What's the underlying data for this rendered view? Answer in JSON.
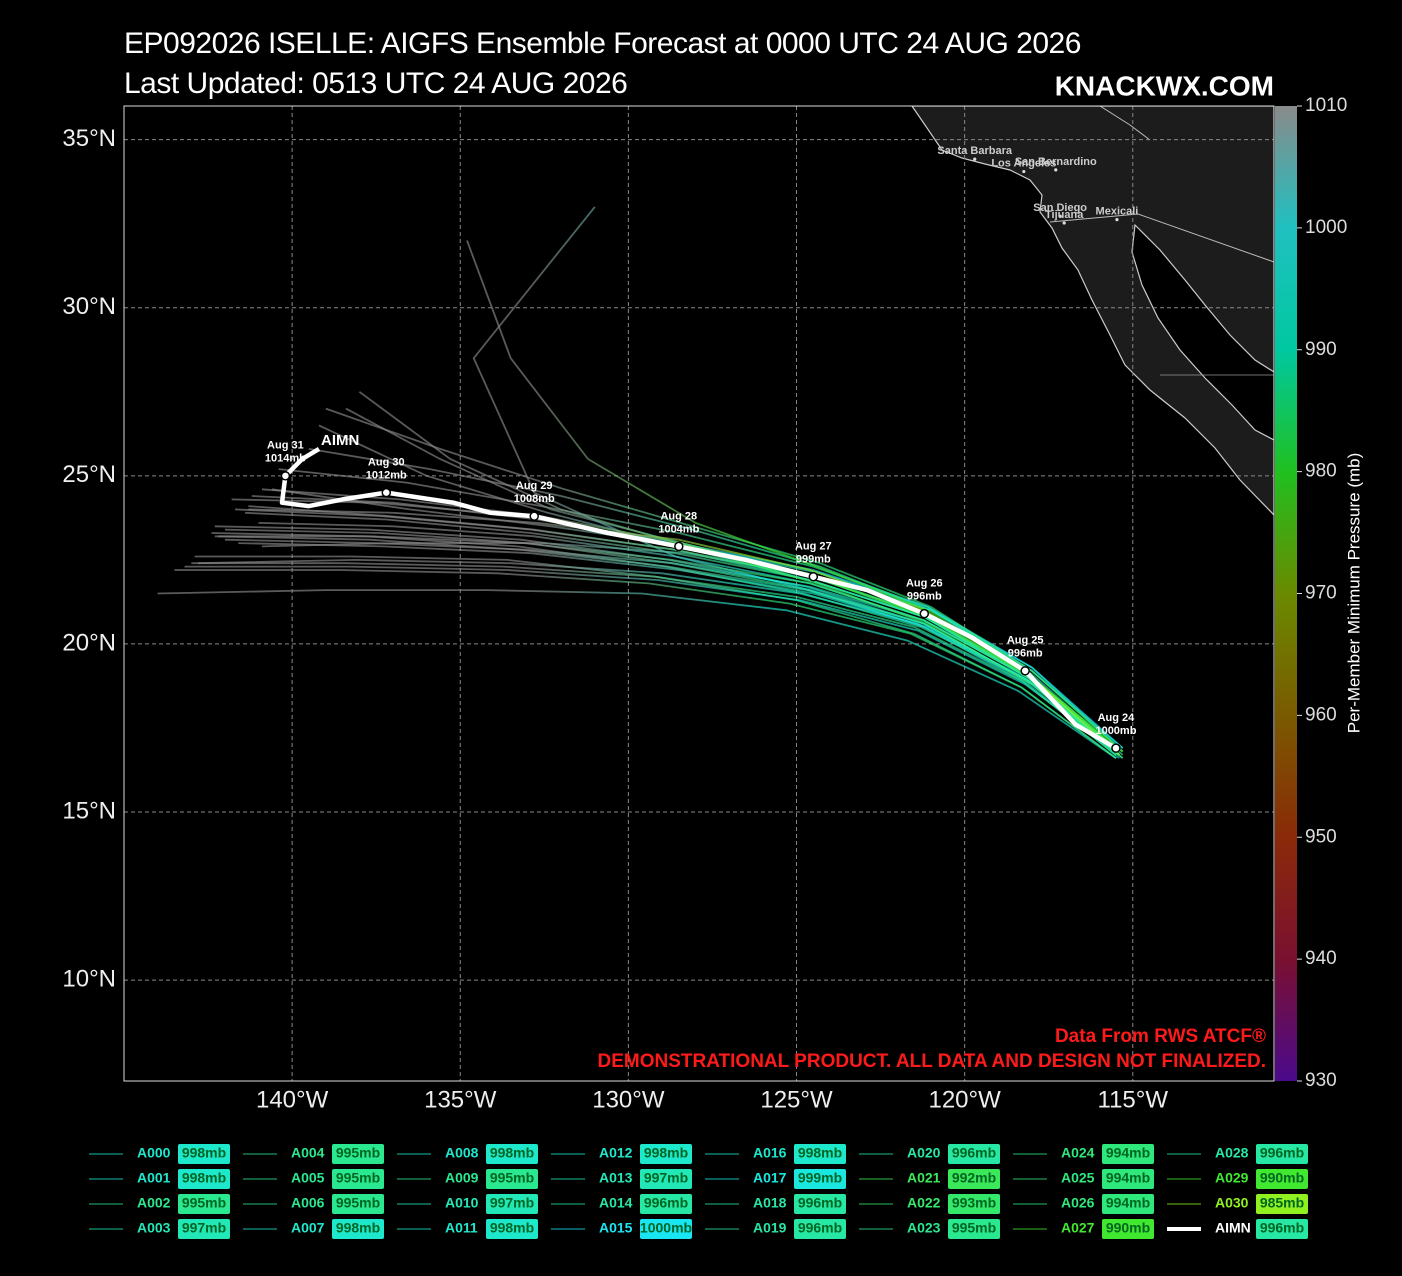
{
  "chart_data": {
    "type": "track",
    "title": "EP092026 ISELLE: AIGFS Ensemble Forecast at 0000 UTC 24 AUG 2026",
    "subtitle": "Last Updated: 0513 UTC 24 AUG 2026",
    "brand": "KNACKWX.COM",
    "annotations": [
      "Data From RWS ATCF®",
      "DEMONSTRATIONAL PRODUCT. ALL DATA AND DESIGN NOT FINALIZED."
    ],
    "xlim": [
      -145,
      -110.8
    ],
    "ylim": [
      7,
      36
    ],
    "xticks": [
      {
        "value": -140,
        "label": "140°W"
      },
      {
        "value": -135,
        "label": "135°W"
      },
      {
        "value": -130,
        "label": "130°W"
      },
      {
        "value": -125,
        "label": "125°W"
      },
      {
        "value": -120,
        "label": "120°W"
      },
      {
        "value": -115,
        "label": "115°W"
      }
    ],
    "yticks": [
      {
        "value": 10,
        "label": "10°N"
      },
      {
        "value": 15,
        "label": "15°N"
      },
      {
        "value": 20,
        "label": "20°N"
      },
      {
        "value": 25,
        "label": "25°N"
      },
      {
        "value": 30,
        "label": "30°N"
      },
      {
        "value": 35,
        "label": "35°N"
      }
    ],
    "grid": true,
    "colorbar": {
      "label": "Per-Member Minimum Pressure (mb)",
      "lim": [
        930,
        1010
      ],
      "ticks": [
        930,
        940,
        950,
        960,
        970,
        980,
        990,
        1000,
        1010
      ],
      "colors": [
        "#4b0a8c",
        "#7a1030",
        "#8a2a08",
        "#7a5a00",
        "#6a8a00",
        "#20c020",
        "#00c8a0",
        "#20c0c0",
        "#8a8a8a"
      ]
    },
    "places": [
      {
        "name": "Santa Barbara",
        "lon": -119.7,
        "lat": 34.42
      },
      {
        "name": "Los Angeles",
        "lon": -118.24,
        "lat": 34.05
      },
      {
        "name": "San Bernardino",
        "lon": -117.29,
        "lat": 34.1
      },
      {
        "name": "San Diego",
        "lon": -117.16,
        "lat": 32.72
      },
      {
        "name": "Tijuana",
        "lon": -117.04,
        "lat": 32.52
      },
      {
        "name": "Mexicali",
        "lon": -115.47,
        "lat": 32.62
      }
    ],
    "series": [
      {
        "name": "A000",
        "color": "#1ee8cc",
        "value": 998,
        "value_label": "998mb",
        "x": [
          -115.4,
          -118.1,
          -121.2,
          -124.6,
          -128.6,
          -132.8,
          -137.0,
          -141.0
        ],
        "y": [
          16.8,
          19.0,
          20.7,
          21.8,
          22.6,
          23.2,
          23.5,
          23.6
        ]
      },
      {
        "name": "A001",
        "color": "#1ee8cc",
        "value": 998,
        "value_label": "998mb",
        "x": [
          -115.3,
          -118.0,
          -121.1,
          -124.5,
          -128.5,
          -132.9,
          -137.3,
          -141.6
        ],
        "y": [
          16.6,
          18.8,
          20.5,
          21.5,
          22.2,
          22.7,
          22.9,
          23.0
        ]
      },
      {
        "name": "A002",
        "color": "#2ae890",
        "value": 995,
        "value_label": "995mb",
        "x": [
          -115.5,
          -118.2,
          -121.3,
          -124.7,
          -128.8,
          -133.1,
          -137.5,
          -141.8
        ],
        "y": [
          16.7,
          19.1,
          20.9,
          22.1,
          23.0,
          23.8,
          24.2,
          24.3
        ]
      },
      {
        "name": "A003",
        "color": "#22e8b8",
        "value": 997,
        "value_label": "997mb",
        "x": [
          -115.4,
          -118.0,
          -121.0,
          -124.4,
          -128.3,
          -132.5,
          -136.8,
          -140.9
        ],
        "y": [
          16.9,
          19.3,
          21.0,
          22.0,
          22.7,
          23.0,
          23.0,
          22.9
        ]
      },
      {
        "name": "A004",
        "color": "#2ae890",
        "value": 995,
        "value_label": "995mb",
        "x": [
          -115.4,
          -118.1,
          -121.2,
          -124.6,
          -128.7,
          -133.0,
          -137.4,
          -142.0
        ],
        "y": [
          16.7,
          18.9,
          20.6,
          21.6,
          22.4,
          23.0,
          23.3,
          23.4
        ]
      },
      {
        "name": "A005",
        "color": "#2ae890",
        "value": 995,
        "value_label": "995mb",
        "x": [
          -115.3,
          -118.0,
          -121.1,
          -124.5,
          -128.5,
          -132.6,
          -136.6,
          -140.4
        ],
        "y": [
          16.8,
          19.2,
          21.1,
          22.3,
          23.3,
          24.1,
          24.8,
          25.2
        ]
      },
      {
        "name": "A006",
        "color": "#2ae890",
        "value": 995,
        "value_label": "995mb",
        "x": [
          -115.5,
          -118.3,
          -121.5,
          -125.0,
          -129.2,
          -133.6,
          -138.2,
          -142.9
        ],
        "y": [
          16.6,
          18.7,
          20.3,
          21.3,
          22.0,
          22.5,
          22.6,
          22.6
        ]
      },
      {
        "name": "A007",
        "color": "#1ee8cc",
        "value": 998,
        "value_label": "998mb",
        "x": [
          -115.4,
          -118.1,
          -121.2,
          -124.6,
          -128.5,
          -132.4,
          -136.0,
          -139.2
        ],
        "y": [
          16.8,
          19.0,
          20.8,
          21.9,
          22.9,
          23.9,
          25.0,
          26.5
        ]
      },
      {
        "name": "A008",
        "color": "#1ee8cc",
        "value": 998,
        "value_label": "998mb",
        "x": [
          -115.4,
          -118.2,
          -121.4,
          -124.9,
          -129.1,
          -133.6,
          -138.3,
          -143.2
        ],
        "y": [
          16.7,
          18.8,
          20.4,
          21.3,
          21.9,
          22.2,
          22.3,
          22.3
        ]
      },
      {
        "name": "A009",
        "color": "#2ae890",
        "value": 995,
        "value_label": "995mb",
        "x": [
          -115.4,
          -118.1,
          -121.2,
          -124.6,
          -128.6,
          -132.9,
          -137.2,
          -141.4
        ],
        "y": [
          16.8,
          19.1,
          20.8,
          21.9,
          22.7,
          23.3,
          23.7,
          23.9
        ]
      },
      {
        "name": "A010",
        "color": "#22e8b8",
        "value": 997,
        "value_label": "997mb",
        "x": [
          -115.3,
          -118.0,
          -121.0,
          -124.3,
          -128.2,
          -132.3,
          -136.5,
          -140.6
        ],
        "y": [
          16.9,
          19.2,
          21.0,
          22.1,
          22.9,
          23.5,
          24.0,
          24.6
        ]
      },
      {
        "name": "A011",
        "color": "#1ee8cc",
        "value": 998,
        "value_label": "998mb",
        "x": [
          -115.4,
          -118.1,
          -121.2,
          -124.7,
          -128.8,
          -133.2,
          -137.7,
          -142.3
        ],
        "y": [
          16.7,
          18.9,
          20.6,
          21.7,
          22.5,
          23.1,
          23.4,
          23.5
        ]
      },
      {
        "name": "A012",
        "color": "#1ee8cc",
        "value": 998,
        "value_label": "998mb",
        "x": [
          -115.5,
          -118.4,
          -121.7,
          -125.3,
          -129.6,
          -134.2,
          -139.0,
          -144.0
        ],
        "y": [
          16.6,
          18.6,
          20.1,
          21.0,
          21.5,
          21.6,
          21.6,
          21.5
        ]
      },
      {
        "name": "A013",
        "color": "#22e8b8",
        "value": 997,
        "value_label": "997mb",
        "x": [
          -115.4,
          -118.1,
          -121.2,
          -124.6,
          -128.7,
          -133.0,
          -137.5,
          -142.0
        ],
        "y": [
          16.8,
          19.0,
          20.7,
          21.7,
          22.4,
          22.8,
          23.0,
          23.1
        ]
      },
      {
        "name": "A014",
        "color": "#26e8a4",
        "value": 996,
        "value_label": "996mb",
        "x": [
          -115.4,
          -118.1,
          -121.2,
          -124.5,
          -128.4,
          -132.3,
          -135.6,
          -138.4
        ],
        "y": [
          16.7,
          19.0,
          20.8,
          22.0,
          23.0,
          24.0,
          25.5,
          27.0
        ]
      },
      {
        "name": "A015",
        "color": "#18e6f2",
        "value": 1000,
        "value_label": "1000mb",
        "x": [
          -115.3,
          -118.0,
          -121.1,
          -124.5,
          -128.5,
          -132.7,
          -137.0,
          -141.2
        ],
        "y": [
          16.9,
          19.3,
          21.1,
          22.2,
          23.0,
          23.7,
          24.2,
          24.4
        ]
      },
      {
        "name": "A016",
        "color": "#1ee8cc",
        "value": 998,
        "value_label": "998mb",
        "x": [
          -115.4,
          -118.2,
          -121.4,
          -124.9,
          -129.0,
          -133.5,
          -138.1,
          -142.8
        ],
        "y": [
          16.8,
          19.0,
          20.6,
          21.5,
          22.1,
          22.4,
          22.5,
          22.4
        ]
      },
      {
        "name": "A017",
        "color": "#1ae8e0",
        "value": 999,
        "value_label": "999mb",
        "x": [
          -115.4,
          -118.1,
          -121.2,
          -124.6,
          -128.6,
          -132.8,
          -134.6,
          -131.0
        ],
        "y": [
          16.6,
          18.8,
          20.5,
          21.6,
          22.6,
          24.5,
          28.5,
          33.0
        ]
      },
      {
        "name": "A018",
        "color": "#26e8a4",
        "value": 996,
        "value_label": "996mb",
        "x": [
          -115.3,
          -118.0,
          -121.0,
          -124.3,
          -128.1,
          -132.0,
          -135.9,
          -139.5
        ],
        "y": [
          16.7,
          19.1,
          21.0,
          22.3,
          23.4,
          24.4,
          25.2,
          25.8
        ]
      },
      {
        "name": "A019",
        "color": "#26e8a4",
        "value": 996,
        "value_label": "996mb",
        "x": [
          -115.4,
          -118.1,
          -121.3,
          -124.8,
          -128.9,
          -133.3,
          -137.8,
          -142.4
        ],
        "y": [
          16.8,
          18.9,
          20.5,
          21.5,
          22.3,
          22.9,
          23.2,
          23.3
        ]
      },
      {
        "name": "A020",
        "color": "#26e8a4",
        "value": 996,
        "value_label": "996mb",
        "x": [
          -115.4,
          -118.1,
          -121.2,
          -124.6,
          -128.6,
          -132.9,
          -137.3,
          -141.7
        ],
        "y": [
          16.7,
          19.0,
          20.8,
          21.9,
          22.8,
          23.4,
          23.8,
          24.0
        ]
      },
      {
        "name": "A021",
        "color": "#3ae85a",
        "value": 992,
        "value_label": "992mb",
        "x": [
          -115.3,
          -118.0,
          -121.1,
          -124.4,
          -128.2,
          -132.0,
          -135.3,
          -138.0
        ],
        "y": [
          16.6,
          18.8,
          20.6,
          21.8,
          22.9,
          24.0,
          25.5,
          27.5
        ]
      },
      {
        "name": "A022",
        "color": "#34e86a",
        "value": 993,
        "value_label": "993mb",
        "x": [
          -115.4,
          -118.1,
          -121.2,
          -124.6,
          -128.6,
          -132.8,
          -137.1,
          -141.3
        ],
        "y": [
          16.8,
          19.1,
          20.9,
          22.0,
          22.8,
          23.4,
          23.8,
          24.1
        ]
      },
      {
        "name": "A023",
        "color": "#2ae890",
        "value": 995,
        "value_label": "995mb",
        "x": [
          -115.5,
          -118.3,
          -121.5,
          -125.0,
          -129.2,
          -133.7,
          -138.4,
          -143.0
        ],
        "y": [
          16.7,
          18.9,
          20.5,
          21.4,
          22.0,
          22.3,
          22.4,
          22.4
        ]
      },
      {
        "name": "A024",
        "color": "#2ee87c",
        "value": 994,
        "value_label": "994mb",
        "x": [
          -115.3,
          -118.0,
          -121.0,
          -124.3,
          -128.1,
          -131.9,
          -135.6,
          -139.0
        ],
        "y": [
          16.8,
          19.2,
          21.1,
          22.4,
          23.5,
          24.6,
          25.8,
          27.0
        ]
      },
      {
        "name": "A025",
        "color": "#2ee87c",
        "value": 994,
        "value_label": "994mb",
        "x": [
          -115.4,
          -118.1,
          -121.2,
          -124.6,
          -128.7,
          -133.1,
          -137.6,
          -142.2
        ],
        "y": [
          16.7,
          19.0,
          20.7,
          21.8,
          22.5,
          23.0,
          23.2,
          23.2
        ]
      },
      {
        "name": "A026",
        "color": "#2ee87c",
        "value": 994,
        "value_label": "994mb",
        "x": [
          -115.5,
          -118.3,
          -121.6,
          -125.2,
          -129.4,
          -133.9,
          -138.6,
          -143.5
        ],
        "y": [
          16.6,
          18.7,
          20.3,
          21.2,
          21.8,
          22.1,
          22.2,
          22.2
        ]
      },
      {
        "name": "A027",
        "color": "#40e830",
        "value": 990,
        "value_label": "990mb",
        "x": [
          -115.4,
          -118.1,
          -121.1,
          -124.4,
          -128.0,
          -131.2,
          -133.5,
          -134.8
        ],
        "y": [
          16.8,
          19.1,
          21.0,
          22.3,
          23.6,
          25.5,
          28.5,
          32.0
        ]
      },
      {
        "name": "A028",
        "color": "#26e8a4",
        "value": 996,
        "value_label": "996mb",
        "x": [
          -115.4,
          -118.1,
          -121.2,
          -124.7,
          -128.8,
          -133.2,
          -137.7,
          -142.3
        ],
        "y": [
          16.7,
          18.9,
          20.6,
          21.6,
          22.3,
          22.8,
          23.1,
          23.2
        ]
      },
      {
        "name": "A029",
        "color": "#40e830",
        "value": 990,
        "value_label": "990mb",
        "x": [
          -115.3,
          -118.0,
          -121.1,
          -124.5,
          -128.4,
          -132.6,
          -136.8,
          -140.9
        ],
        "y": [
          16.8,
          19.0,
          20.8,
          22.0,
          23.0,
          23.8,
          24.3,
          24.6
        ]
      },
      {
        "name": "A030",
        "color": "#90f020",
        "value": 985,
        "value_label": "985mb",
        "x": [
          -115.4,
          -118.1,
          -121.2,
          -124.6,
          -128.5,
          -132.7,
          -137.0,
          -141.3
        ],
        "y": [
          16.7,
          19.1,
          21.0,
          22.2,
          23.1,
          23.6,
          23.9,
          24.0
        ]
      }
    ],
    "mean": {
      "name": "AIMN",
      "color": "#ffffff",
      "value": 996,
      "value_label": "996mb",
      "x": [
        -115.5,
        -116.7,
        -118.2,
        -119.8,
        -121.2,
        -122.9,
        -124.5,
        -126.5,
        -128.5,
        -130.6,
        -132.8,
        -134.1,
        -135.2,
        -137.2,
        -138.5,
        -139.5,
        -140.3,
        -140.2,
        -139.7,
        -139.2
      ],
      "y": [
        16.9,
        17.6,
        19.2,
        20.2,
        20.9,
        21.6,
        22.0,
        22.5,
        22.9,
        23.3,
        23.8,
        23.9,
        24.2,
        24.5,
        24.3,
        24.1,
        24.2,
        25.0,
        25.5,
        25.8
      ],
      "points": [
        {
          "date": "Aug 24",
          "label": "1000mb",
          "lon": -115.5,
          "lat": 16.9
        },
        {
          "date": "Aug 25",
          "label": "996mb",
          "lon": -118.2,
          "lat": 19.2
        },
        {
          "date": "Aug 26",
          "label": "996mb",
          "lon": -121.2,
          "lat": 20.9
        },
        {
          "date": "Aug 27",
          "label": "999mb",
          "lon": -124.5,
          "lat": 22.0
        },
        {
          "date": "Aug 28",
          "label": "1004mb",
          "lon": -128.5,
          "lat": 22.9
        },
        {
          "date": "Aug 29",
          "label": "1008mb",
          "lon": -132.8,
          "lat": 23.8
        },
        {
          "date": "Aug 30",
          "label": "1012mb",
          "lon": -137.2,
          "lat": 24.5
        },
        {
          "date": "Aug 31",
          "label": "1014mb",
          "lon": -140.2,
          "lat": 25.0
        }
      ]
    }
  }
}
